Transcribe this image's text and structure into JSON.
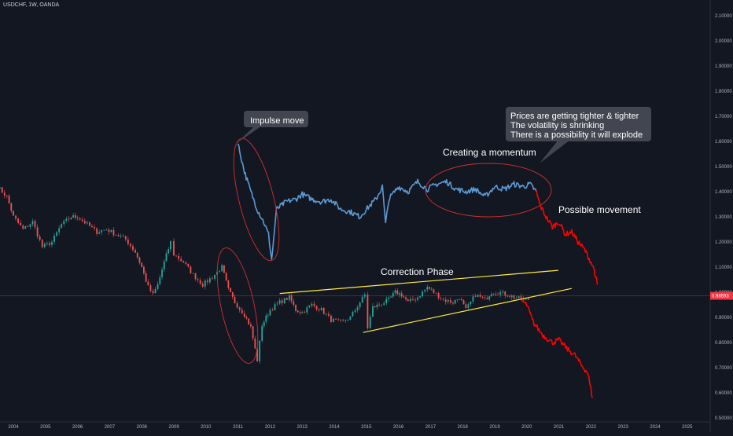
{
  "symbol_label": "USDCHF, 1W, OANDA",
  "current_price": "0.98593",
  "colors": {
    "background": "#131722",
    "candle_up": "#26a69a",
    "candle_down": "#ef5350",
    "projection_blue": "#5b9bd5",
    "projection_red": "#ff0000",
    "trendline": "#ffeb3b",
    "ellipse": "#d32f2f",
    "price_line": "#f23645",
    "bubble": "#434651"
  },
  "chart_data": {
    "type": "line",
    "title": "",
    "xlabel": "",
    "ylabel": "",
    "y_axis_position": "right",
    "grid": false,
    "ylim": [
      0.55,
      2.13
    ],
    "xlim": [
      2003.5,
      2025.9
    ],
    "x_ticks": [
      "2004",
      "2005",
      "2006",
      "2007",
      "2008",
      "2009",
      "2010",
      "2011",
      "2012",
      "2013",
      "2014",
      "2015",
      "2016",
      "2017",
      "2018",
      "2019",
      "2020",
      "2021",
      "2022",
      "2023",
      "2024",
      "2025"
    ],
    "y_ticks": [
      "2.10000",
      "2.00000",
      "1.90000",
      "1.80000",
      "1.70000",
      "1.60000",
      "1.50000",
      "1.40000",
      "1.30000",
      "1.20000",
      "1.10000",
      "1.00000",
      "0.90000",
      "0.80000",
      "0.70000",
      "0.60000",
      "0.50000"
    ],
    "series": [
      {
        "kind": "candles",
        "points": [
          [
            2003.5,
            1.42
          ],
          [
            2003.8,
            1.38
          ],
          [
            2004.0,
            1.3
          ],
          [
            2004.3,
            1.25
          ],
          [
            2004.6,
            1.28
          ],
          [
            2004.9,
            1.18
          ],
          [
            2005.2,
            1.2
          ],
          [
            2005.5,
            1.27
          ],
          [
            2005.8,
            1.3
          ],
          [
            2006.0,
            1.3
          ],
          [
            2006.3,
            1.27
          ],
          [
            2006.6,
            1.24
          ],
          [
            2006.9,
            1.25
          ],
          [
            2007.2,
            1.23
          ],
          [
            2007.5,
            1.21
          ],
          [
            2007.8,
            1.16
          ],
          [
            2008.0,
            1.1
          ],
          [
            2008.2,
            1.02
          ],
          [
            2008.35,
            0.99
          ],
          [
            2008.5,
            1.03
          ],
          [
            2008.7,
            1.12
          ],
          [
            2008.9,
            1.2
          ],
          [
            2009.0,
            1.15
          ],
          [
            2009.3,
            1.12
          ],
          [
            2009.6,
            1.07
          ],
          [
            2009.9,
            1.03
          ],
          [
            2010.2,
            1.06
          ],
          [
            2010.5,
            1.1
          ],
          [
            2010.7,
            1.01
          ],
          [
            2010.9,
            0.96
          ],
          [
            2011.2,
            0.91
          ],
          [
            2011.4,
            0.86
          ],
          [
            2011.6,
            0.73
          ],
          [
            2011.75,
            0.87
          ],
          [
            2012.0,
            0.93
          ],
          [
            2012.3,
            0.96
          ],
          [
            2012.6,
            0.98
          ],
          [
            2012.8,
            0.93
          ],
          [
            2013.0,
            0.92
          ],
          [
            2013.3,
            0.95
          ],
          [
            2013.6,
            0.93
          ],
          [
            2013.9,
            0.89
          ],
          [
            2014.2,
            0.88
          ],
          [
            2014.5,
            0.9
          ],
          [
            2014.8,
            0.96
          ],
          [
            2014.95,
            0.99
          ],
          [
            2015.04,
            0.86
          ],
          [
            2015.2,
            0.94
          ],
          [
            2015.4,
            0.95
          ],
          [
            2015.7,
            0.97
          ],
          [
            2015.9,
            1.0
          ],
          [
            2016.1,
            0.99
          ],
          [
            2016.3,
            0.96
          ],
          [
            2016.6,
            0.98
          ],
          [
            2016.9,
            1.02
          ],
          [
            2017.1,
            1.0
          ],
          [
            2017.4,
            0.97
          ],
          [
            2017.7,
            0.96
          ],
          [
            2017.9,
            0.98
          ],
          [
            2018.1,
            0.93
          ],
          [
            2018.4,
            0.99
          ],
          [
            2018.7,
            0.97
          ],
          [
            2018.9,
            1.0
          ],
          [
            2019.1,
            1.0
          ],
          [
            2019.4,
            0.99
          ],
          [
            2019.6,
            0.98
          ],
          [
            2019.9,
            0.97
          ],
          [
            2020.05,
            0.97
          ]
        ]
      },
      {
        "name": "",
        "kind": "line",
        "color_key": "projection_blue",
        "points": [
          [
            2011.0,
            1.59
          ],
          [
            2011.2,
            1.48
          ],
          [
            2011.4,
            1.4
          ],
          [
            2011.6,
            1.33
          ],
          [
            2011.8,
            1.28
          ],
          [
            2011.95,
            1.23
          ],
          [
            2012.05,
            1.13
          ],
          [
            2012.2,
            1.33
          ],
          [
            2012.5,
            1.36
          ],
          [
            2012.8,
            1.37
          ],
          [
            2013.0,
            1.39
          ],
          [
            2013.3,
            1.37
          ],
          [
            2013.6,
            1.36
          ],
          [
            2013.9,
            1.37
          ],
          [
            2014.2,
            1.33
          ],
          [
            2014.5,
            1.32
          ],
          [
            2014.8,
            1.3
          ],
          [
            2015.0,
            1.33
          ],
          [
            2015.3,
            1.37
          ],
          [
            2015.5,
            1.42
          ],
          [
            2015.6,
            1.27
          ],
          [
            2015.7,
            1.37
          ],
          [
            2016.0,
            1.42
          ],
          [
            2016.3,
            1.4
          ],
          [
            2016.6,
            1.44
          ],
          [
            2016.9,
            1.41
          ],
          [
            2017.2,
            1.43
          ],
          [
            2017.5,
            1.44
          ],
          [
            2017.8,
            1.41
          ],
          [
            2018.1,
            1.4
          ],
          [
            2018.4,
            1.41
          ],
          [
            2018.7,
            1.38
          ],
          [
            2019.0,
            1.42
          ],
          [
            2019.3,
            1.41
          ],
          [
            2019.6,
            1.43
          ],
          [
            2019.9,
            1.42
          ],
          [
            2020.1,
            1.43
          ],
          [
            2020.3,
            1.4
          ]
        ]
      },
      {
        "name": "",
        "kind": "line",
        "color_key": "projection_red",
        "points": [
          [
            2020.3,
            1.4
          ],
          [
            2020.4,
            1.35
          ],
          [
            2020.6,
            1.3
          ],
          [
            2020.8,
            1.26
          ],
          [
            2021.0,
            1.28
          ],
          [
            2021.2,
            1.23
          ],
          [
            2021.4,
            1.24
          ],
          [
            2021.6,
            1.2
          ],
          [
            2021.8,
            1.17
          ],
          [
            2022.0,
            1.12
          ],
          [
            2022.1,
            1.09
          ],
          [
            2022.2,
            1.03
          ]
        ]
      },
      {
        "name": "",
        "kind": "line",
        "color_key": "projection_red",
        "points": [
          [
            2019.8,
            0.97
          ],
          [
            2020.0,
            0.95
          ],
          [
            2020.2,
            0.88
          ],
          [
            2020.5,
            0.83
          ],
          [
            2020.8,
            0.8
          ],
          [
            2021.0,
            0.81
          ],
          [
            2021.3,
            0.77
          ],
          [
            2021.5,
            0.75
          ],
          [
            2021.7,
            0.71
          ],
          [
            2021.9,
            0.68
          ],
          [
            2022.0,
            0.61
          ],
          [
            2022.05,
            0.58
          ]
        ]
      }
    ],
    "trendlines": [
      {
        "from": [
          2012.3,
          0.995
        ],
        "to": [
          2020.98,
          1.087
        ]
      },
      {
        "from": [
          2014.9,
          0.84
        ],
        "to": [
          2021.4,
          1.015
        ]
      }
    ],
    "annotations": [
      {
        "text": "Impulse move",
        "style": "bubble"
      },
      {
        "text": "Prices are getting tighter & tighter",
        "style": "bubble"
      },
      {
        "text": "The volatility is shrinking",
        "style": "bubble"
      },
      {
        "text": "There is a possibility it will explode",
        "style": "bubble"
      },
      {
        "text": "Creating a momentum",
        "style": "plain"
      },
      {
        "text": "Possible movement",
        "style": "plain"
      },
      {
        "text": "Correction Phase",
        "style": "plain"
      }
    ]
  }
}
